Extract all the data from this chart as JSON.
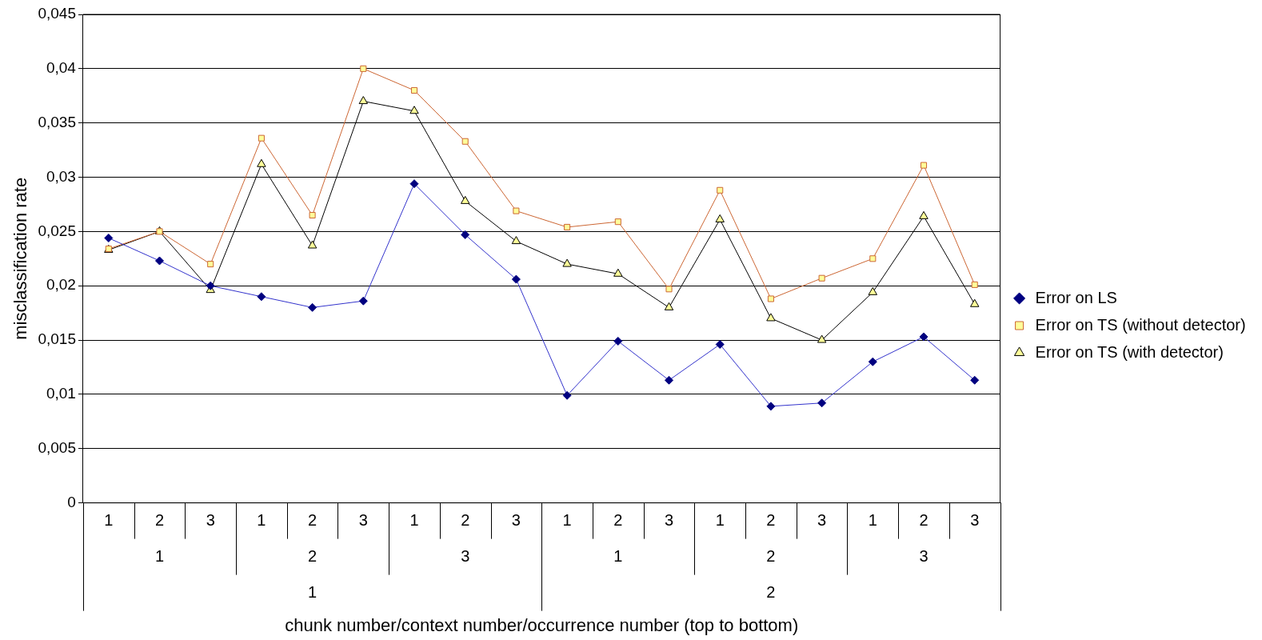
{
  "chart_data": {
    "type": "line",
    "xlabel": "chunk number/context number/occurrence number (top to bottom)",
    "ylabel": "misclassification rate",
    "categories": [
      "1",
      "2",
      "3",
      "1",
      "2",
      "3",
      "1",
      "2",
      "3",
      "1",
      "2",
      "3",
      "1",
      "2",
      "3",
      "1",
      "2",
      "3"
    ],
    "annotations": [
      "1",
      "2",
      "3",
      "1",
      "2",
      "3",
      "1",
      "2"
    ],
    "series": [
      {
        "name": "Error on LS",
        "color": "#000080",
        "marker": "diamond",
        "values": [
          0.0244,
          0.0223,
          0.02,
          0.019,
          0.018,
          0.0186,
          0.0294,
          0.0247,
          0.0206,
          0.0099,
          0.0149,
          0.0113,
          0.0146,
          0.0089,
          0.0092,
          0.013,
          0.0153,
          0.0113
        ]
      },
      {
        "name": "Error on TS (without detector)",
        "color": "#cc6633",
        "marker": "square",
        "values": [
          0.0234,
          0.025,
          0.022,
          0.0336,
          0.0265,
          0.04,
          0.038,
          0.0333,
          0.0269,
          0.0254,
          0.0259,
          0.0197,
          0.0288,
          0.0188,
          0.0207,
          0.0225,
          0.0311,
          0.0201
        ]
      },
      {
        "name": "Error on TS (with detector)",
        "color": "#000000",
        "marker": "triangle",
        "values": [
          0.0233,
          0.025,
          0.0196,
          0.0312,
          0.0237,
          0.037,
          0.0361,
          0.0278,
          0.0241,
          0.022,
          0.0211,
          0.018,
          0.0261,
          0.017,
          0.015,
          0.0194,
          0.0264,
          0.0183
        ]
      }
    ],
    "ylim": [
      0,
      0.045
    ],
    "yticks": [
      0,
      {
        "value": 0.005,
        "label": "0,005"
      },
      {
        "value": 0.01,
        "label": "0,01"
      },
      {
        "value": 0.015,
        "label": "0,015"
      },
      {
        "value": 0.02,
        "label": "0,02"
      },
      {
        "value": 0.025,
        "label": "0,025"
      },
      {
        "value": 0.03,
        "label": "0,03"
      },
      {
        "value": 0.035,
        "label": "0,035"
      },
      {
        "value": 0.04,
        "label": "0,04"
      },
      {
        "value": 0.045,
        "label": "0,045"
      }
    ],
    "grid": "y",
    "legend": "right"
  }
}
